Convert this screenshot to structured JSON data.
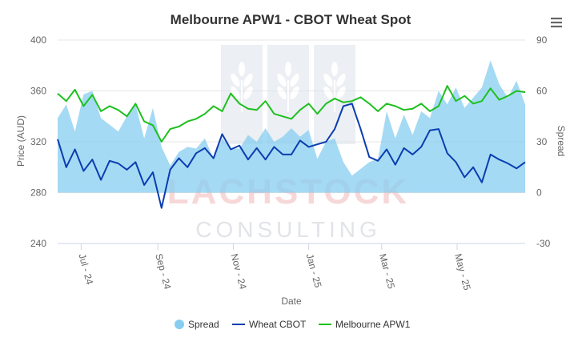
{
  "chart_data": {
    "type": "line",
    "title": "Melbourne APW1 - CBOT Wheat Spot",
    "xlabel": "Date",
    "ylabel_left": "Price (AUD)",
    "ylabel_right": "Spread",
    "y_left": {
      "min": 240,
      "max": 400,
      "ticks": [
        "400",
        "360",
        "320",
        "280",
        "240"
      ]
    },
    "y_right": {
      "min": -30,
      "max": 90,
      "ticks": [
        "90",
        "60",
        "30",
        "0",
        "-30"
      ]
    },
    "x_ticks": [
      "Jul - 24",
      "Sep - 24",
      "Nov - 24",
      "Jan - 25",
      "Mar - 25",
      "May - 25"
    ],
    "legend_position": "bottom-center",
    "grid": "horizontal",
    "series": [
      {
        "name": "Spread",
        "kind": "area",
        "axis": "right",
        "color": "#87cdf0",
        "x": [
          "2024-06-12",
          "2024-06-19",
          "2024-06-26",
          "2024-07-03",
          "2024-07-10",
          "2024-07-17",
          "2024-07-24",
          "2024-07-31",
          "2024-08-07",
          "2024-08-14",
          "2024-08-21",
          "2024-08-28",
          "2024-09-04",
          "2024-09-11",
          "2024-09-18",
          "2024-09-25",
          "2024-10-02",
          "2024-10-09",
          "2024-10-16",
          "2024-10-23",
          "2024-10-30",
          "2024-11-06",
          "2024-11-13",
          "2024-11-20",
          "2024-11-27",
          "2024-12-04",
          "2024-12-11",
          "2024-12-18",
          "2024-12-25",
          "2025-01-01",
          "2025-01-08",
          "2025-01-15",
          "2025-01-22",
          "2025-01-29",
          "2025-02-05",
          "2025-02-12",
          "2025-02-19",
          "2025-02-26",
          "2025-03-05",
          "2025-03-12",
          "2025-03-19",
          "2025-03-26",
          "2025-04-02",
          "2025-04-09",
          "2025-04-16",
          "2025-04-23",
          "2025-04-30",
          "2025-05-07",
          "2025-05-14",
          "2025-05-21",
          "2025-05-28",
          "2025-06-04",
          "2025-06-11",
          "2025-06-18",
          "2025-06-25"
        ],
        "values": [
          44,
          52,
          36,
          58,
          60,
          44,
          40,
          36,
          45,
          52,
          32,
          50,
          27,
          16,
          24,
          27,
          26,
          32,
          20,
          32,
          26,
          26,
          34,
          30,
          38,
          30,
          33,
          38,
          33,
          37,
          20,
          30,
          32,
          18,
          10,
          14,
          18,
          20,
          48,
          32,
          46,
          34,
          48,
          44,
          60,
          52,
          62,
          50,
          56,
          62,
          78,
          64,
          56,
          66,
          52
        ]
      },
      {
        "name": "Wheat CBOT",
        "kind": "line",
        "axis": "left",
        "color": "#0b3db0",
        "x": [
          "2024-06-12",
          "2024-06-19",
          "2024-06-26",
          "2024-07-03",
          "2024-07-10",
          "2024-07-17",
          "2024-07-24",
          "2024-07-31",
          "2024-08-07",
          "2024-08-14",
          "2024-08-21",
          "2024-08-28",
          "2024-09-04",
          "2024-09-11",
          "2024-09-18",
          "2024-09-25",
          "2024-10-02",
          "2024-10-09",
          "2024-10-16",
          "2024-10-23",
          "2024-10-30",
          "2024-11-06",
          "2024-11-13",
          "2024-11-20",
          "2024-11-27",
          "2024-12-04",
          "2024-12-11",
          "2024-12-18",
          "2024-12-25",
          "2025-01-01",
          "2025-01-08",
          "2025-01-15",
          "2025-01-22",
          "2025-01-29",
          "2025-02-05",
          "2025-02-12",
          "2025-02-19",
          "2025-02-26",
          "2025-03-05",
          "2025-03-12",
          "2025-03-19",
          "2025-03-26",
          "2025-04-02",
          "2025-04-09",
          "2025-04-16",
          "2025-04-23",
          "2025-04-30",
          "2025-05-07",
          "2025-05-14",
          "2025-05-21",
          "2025-05-28",
          "2025-06-04",
          "2025-06-11",
          "2025-06-18",
          "2025-06-25"
        ],
        "values": [
          322,
          300,
          314,
          297,
          306,
          290,
          305,
          303,
          298,
          304,
          286,
          296,
          268,
          298,
          307,
          300,
          311,
          315,
          307,
          326,
          314,
          317,
          306,
          315,
          306,
          316,
          310,
          310,
          321,
          316,
          318,
          320,
          330,
          348,
          350,
          330,
          308,
          305,
          314,
          302,
          315,
          310,
          316,
          329,
          330,
          311,
          304,
          292,
          300,
          288,
          310,
          306,
          303,
          299,
          304
        ]
      },
      {
        "name": "Melbourne APW1",
        "kind": "line",
        "axis": "left",
        "color": "#1ec01e",
        "x": [
          "2024-06-12",
          "2024-06-19",
          "2024-06-26",
          "2024-07-03",
          "2024-07-10",
          "2024-07-17",
          "2024-07-24",
          "2024-07-31",
          "2024-08-07",
          "2024-08-14",
          "2024-08-21",
          "2024-08-28",
          "2024-09-04",
          "2024-09-11",
          "2024-09-18",
          "2024-09-25",
          "2024-10-02",
          "2024-10-09",
          "2024-10-16",
          "2024-10-23",
          "2024-10-30",
          "2024-11-06",
          "2024-11-13",
          "2024-11-20",
          "2024-11-27",
          "2024-12-04",
          "2024-12-11",
          "2024-12-18",
          "2024-12-25",
          "2025-01-01",
          "2025-01-08",
          "2025-01-15",
          "2025-01-22",
          "2025-01-29",
          "2025-02-05",
          "2025-02-12",
          "2025-02-19",
          "2025-02-26",
          "2025-03-05",
          "2025-03-12",
          "2025-03-19",
          "2025-03-26",
          "2025-04-02",
          "2025-04-09",
          "2025-04-16",
          "2025-04-23",
          "2025-04-30",
          "2025-05-07",
          "2025-05-14",
          "2025-05-21",
          "2025-05-28",
          "2025-06-04",
          "2025-06-11",
          "2025-06-18",
          "2025-06-25"
        ],
        "values": [
          358,
          352,
          361,
          348,
          357,
          344,
          348,
          345,
          340,
          350,
          336,
          333,
          320,
          330,
          332,
          336,
          338,
          342,
          348,
          344,
          358,
          350,
          346,
          345,
          352,
          342,
          340,
          338,
          345,
          350,
          342,
          350,
          354,
          351,
          352,
          355,
          350,
          344,
          350,
          348,
          345,
          346,
          350,
          344,
          348,
          364,
          352,
          356,
          350,
          352,
          362,
          353,
          356,
          360,
          359
        ]
      }
    ]
  },
  "menu": {
    "icon": "hamburger-menu-icon"
  },
  "watermark": {
    "line1": "LACHSTOCK",
    "line2": "CONSULTING"
  }
}
